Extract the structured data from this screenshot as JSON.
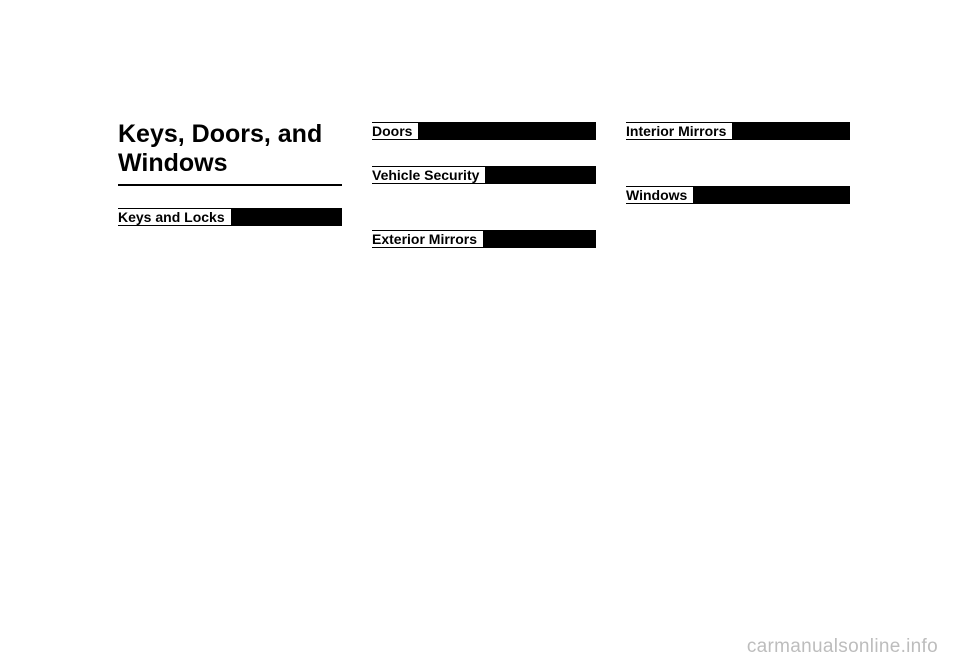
{
  "chapter_title": "Keys, Doors, and Windows",
  "columns": {
    "left": {
      "sections": [
        {
          "heading": "Keys and Locks"
        }
      ]
    },
    "middle": {
      "sections": [
        {
          "heading": "Doors"
        },
        {
          "heading": "Vehicle Security"
        },
        {
          "heading": "Exterior Mirrors"
        }
      ]
    },
    "right": {
      "sections": [
        {
          "heading": "Interior Mirrors"
        },
        {
          "heading": "Windows"
        }
      ]
    }
  },
  "watermark": "carmanualsonline.info",
  "colors": {
    "text": "#000000",
    "background": "#ffffff",
    "rule": "#000000",
    "watermark": "#bdbdbd"
  },
  "typography": {
    "chapter_title_fontsize": 25,
    "section_head_fontsize": 14,
    "watermark_fontsize": 19,
    "font_family": "Arial, Helvetica, sans-serif"
  }
}
